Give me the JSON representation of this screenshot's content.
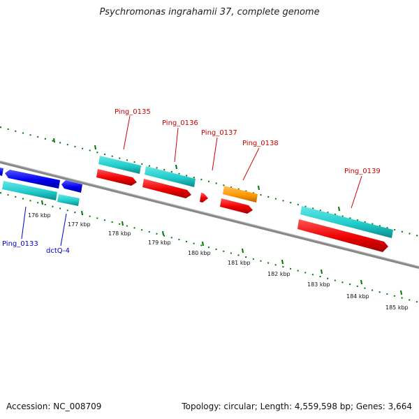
{
  "header": {
    "title": "Psychromonas ingrahamii 37, complete genome"
  },
  "footer": {
    "accession": "Accession: NC_008709",
    "summary": "Topology: circular; Length: 4,559,598 bp; Genes: 3,664"
  },
  "colors": {
    "forward_cds": "#ff0000",
    "reverse_cds": "#0000ee",
    "gene": "#22cccc",
    "trna_like": "#ff9900",
    "backbone": "#777777",
    "tick": "#007700",
    "label_forward": "#cc0000",
    "label_reverse": "#0000cc"
  },
  "scale": {
    "tick_labels": [
      "176 kbp",
      "177 kbp",
      "178 kbp",
      "179 kbp",
      "180 kbp",
      "181 kbp",
      "182 kbp",
      "183 kbp",
      "184 kbp",
      "185 kbp"
    ]
  },
  "features": {
    "forward_labels": [
      "Ping_0135",
      "Ping_0136",
      "Ping_0137",
      "Ping_0138",
      "Ping_0139"
    ],
    "reverse_labels": [
      "Ping_0133",
      "dctQ-4"
    ]
  }
}
